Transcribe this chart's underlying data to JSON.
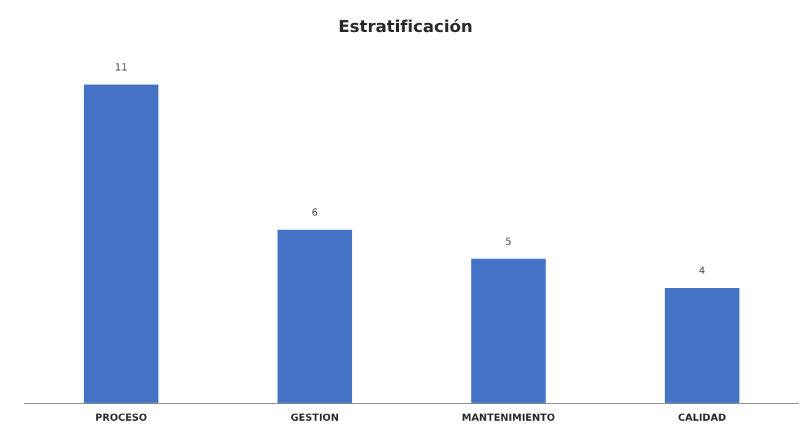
{
  "chart_data": {
    "type": "bar",
    "title": "Estratificación",
    "categories": [
      "PROCESO",
      "GESTION",
      "MANTENIMIENTO",
      "CALIDAD"
    ],
    "values": [
      11,
      6,
      5,
      4
    ],
    "color": "#4472c4",
    "data_labels": true,
    "grid": false,
    "tick_labels": "x"
  }
}
